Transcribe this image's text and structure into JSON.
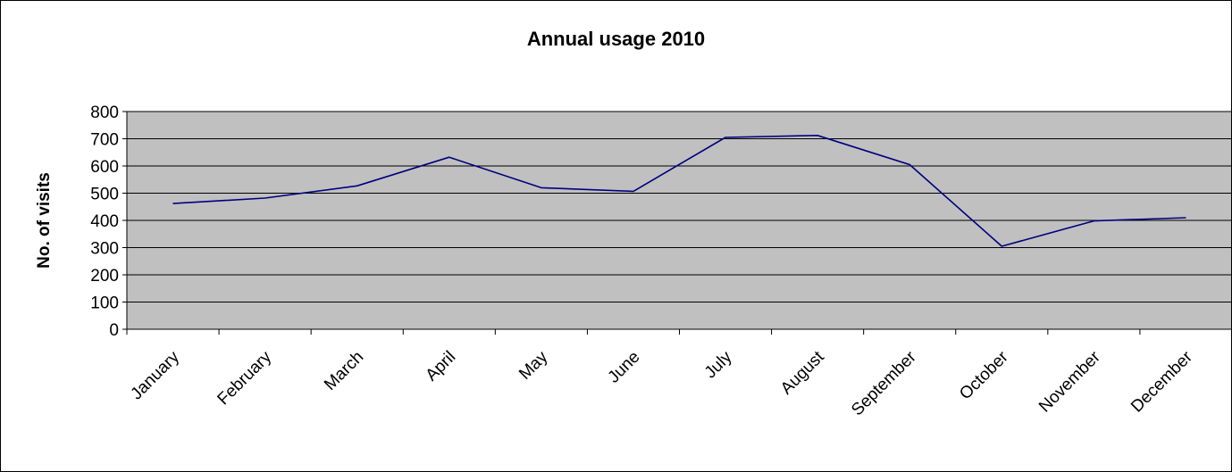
{
  "chart_data": {
    "type": "line",
    "title": "Annual usage 2010",
    "xlabel": "",
    "ylabel": "No. of visits",
    "categories": [
      "January",
      "February",
      "March",
      "April",
      "May",
      "June",
      "July",
      "August",
      "September",
      "October",
      "November",
      "December"
    ],
    "series": [
      {
        "values": [
          462,
          482,
          527,
          632,
          520,
          507,
          705,
          712,
          605,
          305,
          398,
          410
        ],
        "color": "#000080"
      }
    ],
    "ylim": [
      0,
      800
    ],
    "yticks": [
      0,
      100,
      200,
      300,
      400,
      500,
      600,
      700,
      800
    ],
    "grid": true,
    "legend": "none",
    "plot_background": "#c0c0c0",
    "gridline_color": "#000000"
  }
}
